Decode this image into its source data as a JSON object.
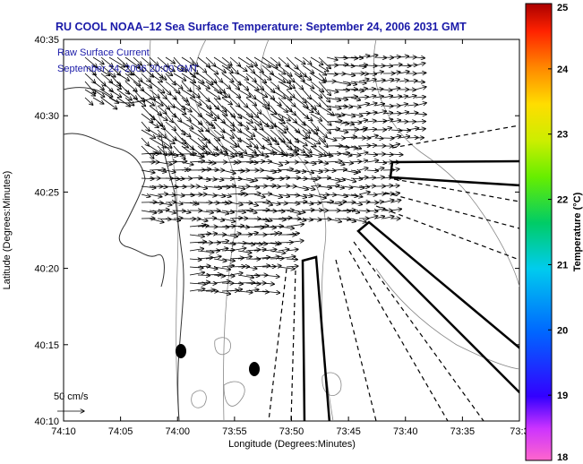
{
  "chart_data": {
    "type": "vector-field-map",
    "title": "RU COOL  NOAA–12  Sea Surface Temperature:  September 24, 2006 2031 GMT",
    "legend": {
      "label": "Raw Surface Current",
      "timestamp": "September 24, 2006 20:00 GMT",
      "position": "top-left"
    },
    "xlabel": "Longitude (Degrees:Minutes)",
    "ylabel": "Latitude (Degrees:Minutes)",
    "x_ticks": [
      "74:10",
      "74:05",
      "74:00",
      "73:55",
      "73:50",
      "73:45",
      "73:40",
      "73:35",
      "73:3"
    ],
    "y_ticks": [
      "40:10",
      "40:15",
      "40:20",
      "40:25",
      "40:30",
      "40:35"
    ],
    "x_range_minutes_west": [
      10,
      30
    ],
    "y_range_minutes_north": [
      10,
      35
    ],
    "scale_arrow_label": "50 cm/s",
    "colorbar": {
      "label": "Temperature (°C)",
      "range": [
        18,
        25
      ],
      "ticks": [
        "18",
        "19",
        "20",
        "21",
        "22",
        "23",
        "24",
        "25"
      ]
    },
    "colors": {
      "title": "#1a1aa8",
      "coast": "#333333",
      "bathymetry": "#888888",
      "arrows": "#000000"
    }
  }
}
